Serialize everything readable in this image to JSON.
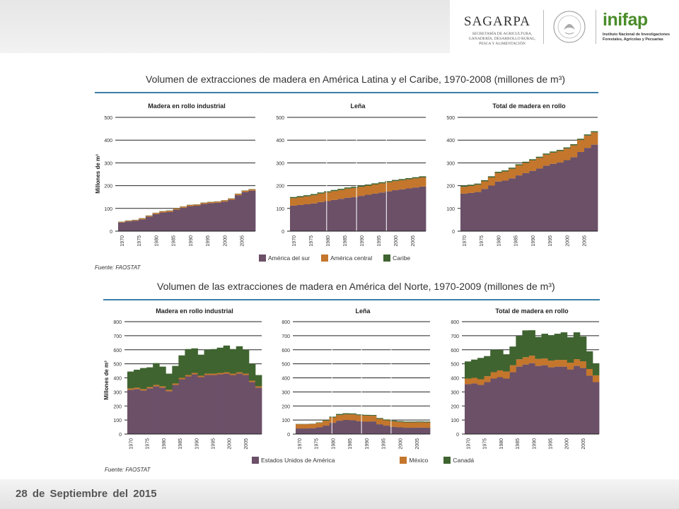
{
  "header": {
    "sagarpa": {
      "name": "SAGARPA",
      "lines": [
        "SECRETARÍA DE AGRICULTURA,",
        "GANADERÍA, DESARROLLO RURAL,",
        "PESCA Y ALIMENTACIÓN"
      ]
    },
    "inifap": {
      "name": "inifap",
      "lines": [
        "Instituto Nacional de Investigaciones",
        "Forestales, Agrícolas y Pecuarias"
      ]
    }
  },
  "footer": {
    "date": "28 de Septiembre del 2015"
  },
  "sections": [
    {
      "title": "Volumen de extracciones de madera en América Latina y el Caribe, 1970-2008 (millones de m³)",
      "ylabel": "Millones de m³",
      "source": "Fuente: FAOSTAT",
      "legend": [
        {
          "label": "América del sur",
          "color": "#6b5068"
        },
        {
          "label": "América central",
          "color": "#c4762c"
        },
        {
          "label": "Caribe",
          "color": "#3f6430"
        }
      ]
    },
    {
      "title": "Volumen de las extracciones de madera en América del Norte, 1970-2009 (millones de m³)",
      "ylabel": "Millones de m³",
      "source": "Fuente: FAOSTAT",
      "legend": [
        {
          "label": "Estados Unidos de América",
          "color": "#6b5068"
        },
        {
          "label": "México",
          "color": "#c4762c"
        },
        {
          "label": "Canadá",
          "color": "#3f6430"
        }
      ]
    }
  ],
  "chart_data": [
    {
      "type": "area",
      "stacked": true,
      "title": "Madera en rollo industrial",
      "ylabel": "Millones de m³",
      "ylim": [
        0,
        500
      ],
      "yticks": [
        0,
        100,
        200,
        300,
        400,
        500
      ],
      "x": [
        1970,
        1972,
        1974,
        1976,
        1978,
        1980,
        1982,
        1984,
        1986,
        1988,
        1990,
        1992,
        1994,
        1996,
        1998,
        2000,
        2002,
        2004,
        2006,
        2008
      ],
      "xticks": [
        1970,
        1975,
        1980,
        1985,
        1990,
        1995,
        2000,
        2005
      ],
      "series": [
        {
          "name": "América del sur",
          "color": "#6b5068",
          "values": [
            38,
            43,
            46,
            52,
            64,
            75,
            82,
            85,
            95,
            103,
            110,
            112,
            120,
            123,
            125,
            130,
            138,
            158,
            172,
            178
          ]
        },
        {
          "name": "América central",
          "color": "#c4762c",
          "values": [
            3,
            3,
            3,
            4,
            4,
            5,
            5,
            5,
            5,
            5,
            5,
            5,
            5,
            5,
            5,
            5,
            5,
            6,
            6,
            6
          ]
        },
        {
          "name": "Caribe",
          "color": "#3f6430",
          "values": [
            1,
            1,
            1,
            1,
            1,
            1,
            1,
            1,
            1,
            1,
            1,
            1,
            1,
            1,
            1,
            1,
            1,
            1,
            1,
            1
          ]
        }
      ]
    },
    {
      "type": "area",
      "stacked": true,
      "title": "Leña",
      "ylabel": "Millones de m³",
      "ylim": [
        0,
        500
      ],
      "yticks": [
        0,
        100,
        200,
        300,
        400,
        500
      ],
      "x": [
        1970,
        1972,
        1974,
        1976,
        1978,
        1980,
        1982,
        1984,
        1986,
        1988,
        1990,
        1992,
        1994,
        1996,
        1998,
        2000,
        2002,
        2004,
        2006,
        2008
      ],
      "xticks": [
        1970,
        1975,
        1980,
        1985,
        1990,
        1995,
        2000,
        2005
      ],
      "series": [
        {
          "name": "América del sur",
          "color": "#6b5068",
          "values": [
            112,
            115,
            118,
            122,
            128,
            132,
            137,
            142,
            147,
            150,
            155,
            160,
            165,
            170,
            175,
            180,
            184,
            188,
            192,
            196
          ]
        },
        {
          "name": "América central",
          "color": "#c4762c",
          "values": [
            33,
            34,
            35,
            36,
            37,
            38,
            39,
            39,
            40,
            40,
            40,
            40,
            40,
            40,
            40,
            40,
            40,
            40,
            40,
            40
          ]
        },
        {
          "name": "Caribe",
          "color": "#3f6430",
          "values": [
            5,
            5,
            5,
            5,
            5,
            5,
            5,
            5,
            5,
            5,
            5,
            5,
            5,
            5,
            5,
            5,
            5,
            5,
            5,
            5
          ]
        }
      ]
    },
    {
      "type": "area",
      "stacked": true,
      "title": "Total de madera en rollo",
      "ylabel": "Millones de m³",
      "ylim": [
        0,
        500
      ],
      "yticks": [
        0,
        100,
        200,
        300,
        400,
        500
      ],
      "x": [
        1970,
        1972,
        1974,
        1976,
        1978,
        1980,
        1982,
        1984,
        1986,
        1988,
        1990,
        1992,
        1994,
        1996,
        1998,
        2000,
        2002,
        2004,
        2006,
        2008
      ],
      "xticks": [
        1970,
        1975,
        1980,
        1985,
        1990,
        1995,
        2000,
        2005
      ],
      "series": [
        {
          "name": "América del sur",
          "color": "#6b5068",
          "values": [
            165,
            168,
            172,
            185,
            200,
            218,
            222,
            232,
            245,
            255,
            265,
            275,
            288,
            296,
            302,
            312,
            325,
            348,
            366,
            380
          ]
        },
        {
          "name": "América central",
          "color": "#c4762c",
          "values": [
            30,
            31,
            32,
            34,
            36,
            38,
            40,
            42,
            44,
            45,
            46,
            47,
            48,
            49,
            50,
            51,
            52,
            53,
            54,
            54
          ]
        },
        {
          "name": "Caribe",
          "color": "#3f6430",
          "values": [
            5,
            5,
            5,
            5,
            5,
            5,
            5,
            5,
            5,
            5,
            5,
            5,
            5,
            5,
            5,
            5,
            5,
            5,
            5,
            5
          ]
        }
      ]
    },
    {
      "type": "area",
      "stacked": true,
      "title": "Madera en rollo industrial",
      "ylabel": "Millones de m³",
      "ylim": [
        0,
        800
      ],
      "yticks": [
        0,
        100,
        200,
        300,
        400,
        500,
        600,
        700,
        800
      ],
      "x": [
        1970,
        1972,
        1974,
        1976,
        1978,
        1980,
        1982,
        1984,
        1986,
        1988,
        1990,
        1992,
        1994,
        1996,
        1998,
        2000,
        2002,
        2004,
        2006,
        2008,
        2009
      ],
      "xticks": [
        1970,
        1975,
        1980,
        1985,
        1990,
        1995,
        2000,
        2005
      ],
      "series": [
        {
          "name": "Estados Unidos de América",
          "color": "#6b5068",
          "values": [
            315,
            320,
            310,
            325,
            340,
            330,
            305,
            350,
            390,
            410,
            425,
            405,
            420,
            420,
            425,
            430,
            420,
            430,
            420,
            370,
            330
          ]
        },
        {
          "name": "México",
          "color": "#c4762c",
          "values": [
            10,
            10,
            10,
            10,
            10,
            10,
            10,
            10,
            10,
            10,
            10,
            10,
            10,
            10,
            10,
            10,
            10,
            10,
            10,
            10,
            10
          ]
        },
        {
          "name": "Canadá",
          "color": "#3f6430",
          "values": [
            120,
            128,
            150,
            140,
            155,
            140,
            115,
            125,
            160,
            185,
            175,
            150,
            170,
            175,
            180,
            190,
            175,
            185,
            170,
            120,
            80
          ]
        }
      ]
    },
    {
      "type": "area",
      "stacked": true,
      "title": "Leña",
      "ylabel": "Millones de m³",
      "ylim": [
        0,
        800
      ],
      "yticks": [
        0,
        100,
        200,
        300,
        400,
        500,
        600,
        700,
        800
      ],
      "x": [
        1970,
        1972,
        1974,
        1976,
        1978,
        1980,
        1982,
        1984,
        1986,
        1988,
        1990,
        1992,
        1994,
        1996,
        1998,
        2000,
        2002,
        2004,
        2006,
        2008
      ],
      "xticks": [
        1970,
        1975,
        1980,
        1985,
        1990,
        1995,
        2000,
        2005
      ],
      "series": [
        {
          "name": "Estados Unidos de América",
          "color": "#6b5068",
          "values": [
            40,
            40,
            42,
            48,
            60,
            80,
            95,
            100,
            98,
            92,
            88,
            90,
            70,
            60,
            52,
            48,
            45,
            45,
            46,
            45
          ]
        },
        {
          "name": "México",
          "color": "#c4762c",
          "values": [
            30,
            30,
            30,
            32,
            35,
            38,
            40,
            40,
            42,
            42,
            43,
            40,
            38,
            38,
            38,
            38,
            38,
            38,
            38,
            38
          ]
        },
        {
          "name": "Canadá",
          "color": "#3f6430",
          "values": [
            2,
            2,
            2,
            3,
            5,
            6,
            8,
            8,
            7,
            6,
            6,
            6,
            6,
            6,
            6,
            6,
            6,
            6,
            6,
            6
          ]
        }
      ]
    },
    {
      "type": "area",
      "stacked": true,
      "title": "Total de madera en rollo",
      "ylabel": "Millones de m³",
      "ylim": [
        0,
        800
      ],
      "yticks": [
        0,
        100,
        200,
        300,
        400,
        500,
        600,
        700,
        800
      ],
      "x": [
        1970,
        1972,
        1974,
        1976,
        1978,
        1980,
        1982,
        1984,
        1986,
        1988,
        1990,
        1992,
        1994,
        1996,
        1998,
        2000,
        2002,
        2004,
        2006,
        2008,
        2009
      ],
      "xticks": [
        1970,
        1975,
        1980,
        1985,
        1990,
        1995,
        2000,
        2005
      ],
      "series": [
        {
          "name": "Estados Unidos de América",
          "color": "#6b5068",
          "values": [
            355,
            360,
            350,
            370,
            395,
            405,
            395,
            440,
            480,
            495,
            505,
            485,
            490,
            475,
            480,
            480,
            460,
            485,
            470,
            415,
            370
          ]
        },
        {
          "name": "México",
          "color": "#c4762c",
          "values": [
            40,
            40,
            40,
            42,
            45,
            48,
            50,
            50,
            52,
            52,
            53,
            50,
            48,
            48,
            48,
            48,
            48,
            48,
            48,
            48,
            48
          ]
        },
        {
          "name": "Canadá",
          "color": "#3f6430",
          "values": [
            122,
            130,
            152,
            143,
            160,
            146,
            123,
            133,
            167,
            191,
            181,
            156,
            176,
            181,
            186,
            196,
            181,
            191,
            176,
            126,
            86
          ]
        }
      ]
    }
  ]
}
